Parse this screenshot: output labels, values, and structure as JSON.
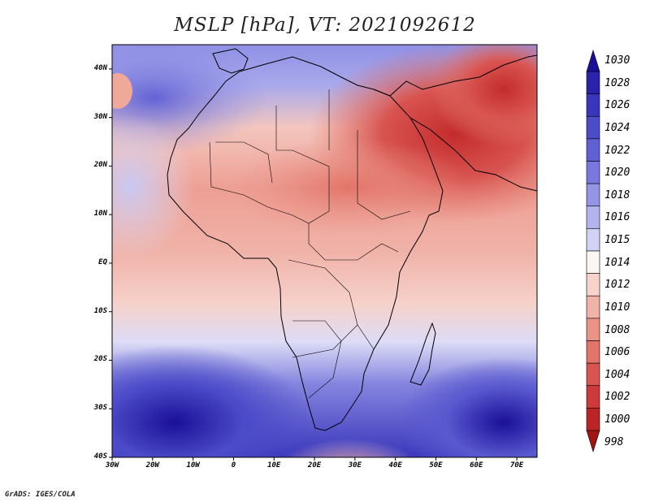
{
  "title": "MSLP [hPa], VT: 2021092612",
  "credit": "GrADS: IGES/COLA",
  "map": {
    "variable": "MSLP",
    "units": "hPa",
    "valid_time": "2021092612",
    "lon_range": [
      -30,
      75
    ],
    "lat_range": [
      -40,
      45
    ],
    "lat_ticks": [
      {
        "label": "40N",
        "lat": 40
      },
      {
        "label": "30N",
        "lat": 30
      },
      {
        "label": "20N",
        "lat": 20
      },
      {
        "label": "10N",
        "lat": 10
      },
      {
        "label": "EQ",
        "lat": 0
      },
      {
        "label": "10S",
        "lat": -10
      },
      {
        "label": "20S",
        "lat": -20
      },
      {
        "label": "30S",
        "lat": -30
      },
      {
        "label": "40S",
        "lat": -40
      }
    ],
    "lon_ticks": [
      {
        "label": "30W",
        "lon": -30
      },
      {
        "label": "20W",
        "lon": -20
      },
      {
        "label": "10W",
        "lon": -10
      },
      {
        "label": "0",
        "lon": 0
      },
      {
        "label": "10E",
        "lon": 10
      },
      {
        "label": "20E",
        "lon": 20
      },
      {
        "label": "30E",
        "lon": 30
      },
      {
        "label": "40E",
        "lon": 40
      },
      {
        "label": "50E",
        "lon": 50
      },
      {
        "label": "60E",
        "lon": 60
      },
      {
        "label": "70E",
        "lon": 70
      }
    ]
  },
  "colorbar": {
    "levels": [
      {
        "label": "1030",
        "color": "#1a0f99"
      },
      {
        "label": "1028",
        "color": "#2a22aa"
      },
      {
        "label": "1026",
        "color": "#3a36bb"
      },
      {
        "label": "1024",
        "color": "#4c4bc8"
      },
      {
        "label": "1022",
        "color": "#6060d4"
      },
      {
        "label": "1020",
        "color": "#7878de"
      },
      {
        "label": "1018",
        "color": "#9595e6"
      },
      {
        "label": "1016",
        "color": "#b3b3ee"
      },
      {
        "label": "1015",
        "color": "#d2d2f6"
      },
      {
        "label": "1014",
        "color": "#fbf5f3"
      },
      {
        "label": "1012",
        "color": "#f7d3cc"
      },
      {
        "label": "1010",
        "color": "#f1b2a8"
      },
      {
        "label": "1008",
        "color": "#ea9488"
      },
      {
        "label": "1006",
        "color": "#e27468"
      },
      {
        "label": "1004",
        "color": "#d85450"
      },
      {
        "label": "1002",
        "color": "#cc3a3a"
      },
      {
        "label": "1000",
        "color": "#bb2525"
      },
      {
        "label": "998",
        "color": "#a01414"
      }
    ]
  }
}
